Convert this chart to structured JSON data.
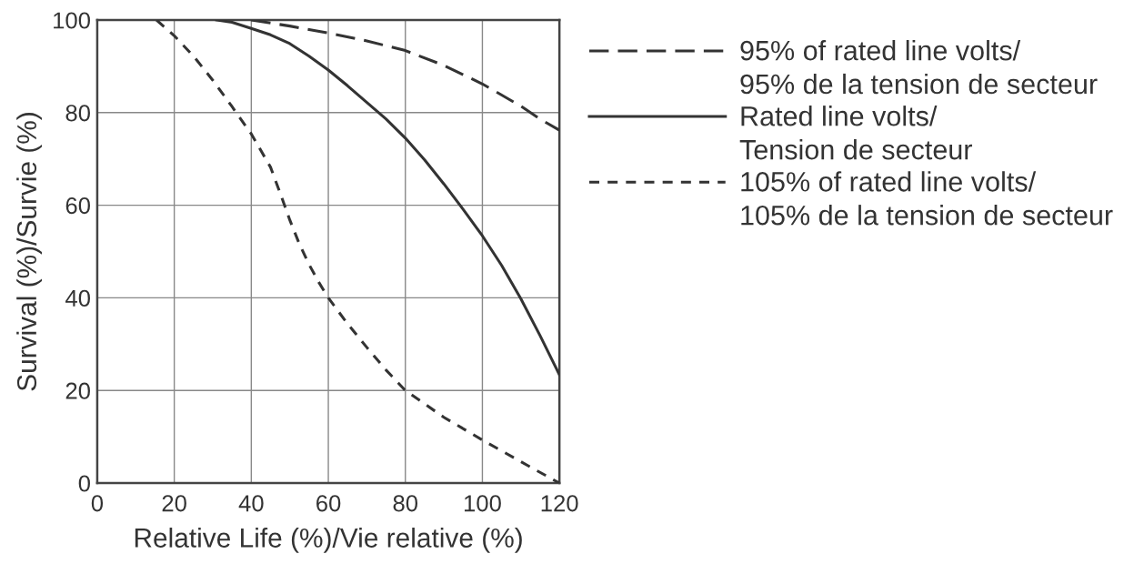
{
  "chart_data": {
    "type": "line",
    "xlabel": "Relative Life (%)/Vie relative (%)",
    "ylabel": "Survival (%)/Survie (%)",
    "xlim": [
      0,
      120
    ],
    "xticks": [
      0,
      20,
      40,
      60,
      80,
      100,
      120
    ],
    "ylim": [
      0,
      100
    ],
    "yticks": [
      0,
      20,
      40,
      60,
      80,
      100
    ],
    "grid": true,
    "legend": "right",
    "series": [
      {
        "name": "95% of rated line volts/\n95% de la tension de secteur",
        "color": "#333333",
        "line_style": "dashed",
        "x": [
          40,
          50,
          60,
          70,
          80,
          90,
          100,
          110,
          115,
          120
        ],
        "values": [
          100,
          98.7,
          97.2,
          95.5,
          93.4,
          90.2,
          86.2,
          81.4,
          78.6,
          76.2
        ]
      },
      {
        "name": "Rated line volts/\nTension de secteur",
        "color": "#333333",
        "line_style": "solid",
        "x": [
          31,
          35,
          40,
          45,
          50,
          55,
          60,
          65,
          70,
          75,
          80,
          85,
          90,
          95,
          100,
          105,
          110,
          115,
          120
        ],
        "values": [
          100,
          99.5,
          98.2,
          96.8,
          94.9,
          92.2,
          89.2,
          85.8,
          82.2,
          78.6,
          74.5,
          69.8,
          64.6,
          59.1,
          53.4,
          47,
          39.8,
          31.8,
          23.4
        ]
      },
      {
        "name": "105% of rated line volts/\n105% de la tension de secteur",
        "color": "#333333",
        "line_style": "dotted",
        "x": [
          15.4,
          20,
          25,
          30,
          35,
          40,
          45,
          47.5,
          50,
          52.5,
          55,
          57.5,
          60,
          65,
          70,
          75,
          80,
          90,
          100,
          110,
          120
        ],
        "values": [
          100,
          96.6,
          92.2,
          87,
          81.3,
          75.4,
          68.2,
          62.6,
          56.8,
          51.6,
          47.2,
          43.4,
          40,
          34.4,
          29.3,
          24.4,
          20,
          14.2,
          9.3,
          4.6,
          0
        ]
      }
    ]
  }
}
